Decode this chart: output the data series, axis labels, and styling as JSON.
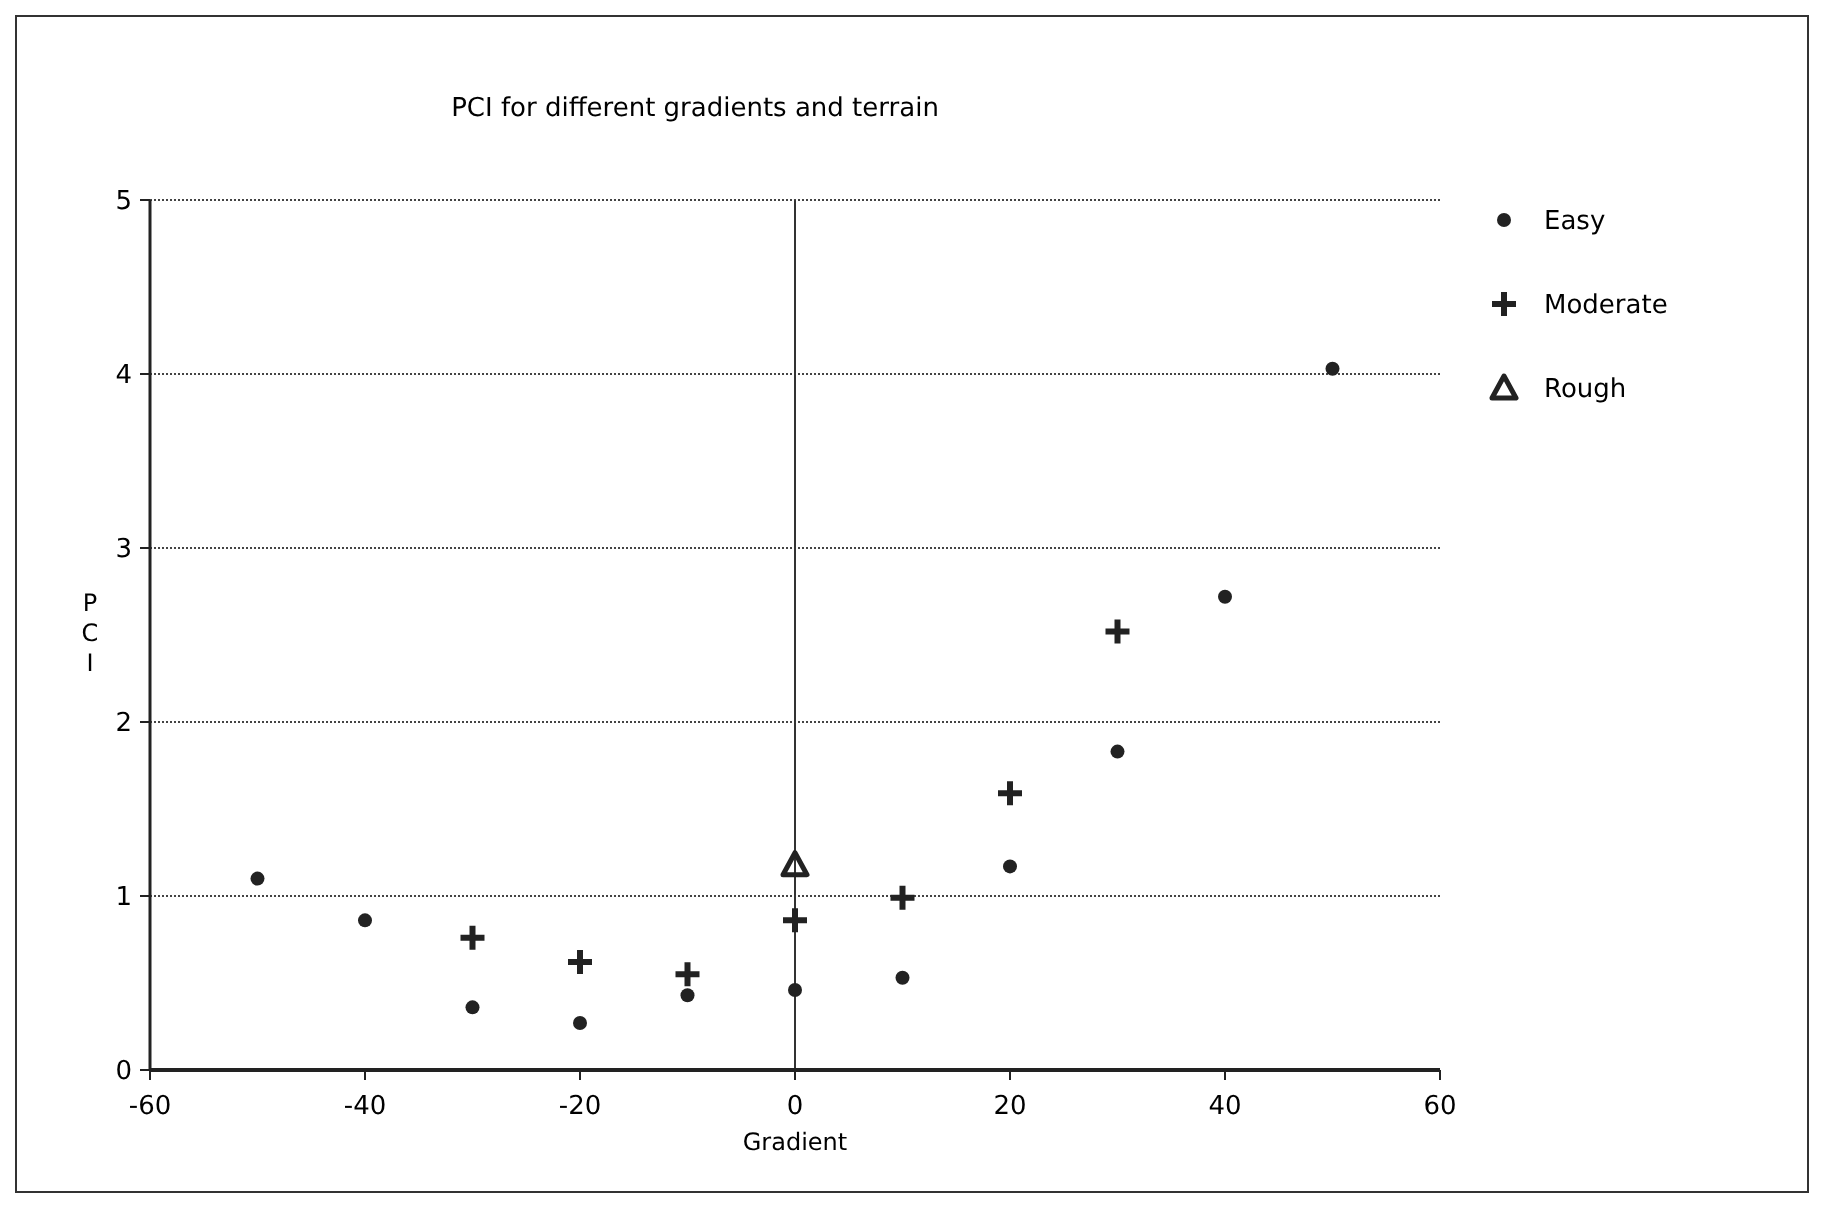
{
  "chart_data": {
    "type": "scatter",
    "title": "PCI for different gradients and terrain",
    "xlabel": "Gradient",
    "ylabel": "PCI",
    "series": [
      {
        "name": "Easy",
        "color": "#222222",
        "marker": "circle",
        "x": [
          -50,
          -40,
          -30,
          -20,
          -10,
          0,
          10,
          20,
          30,
          40,
          50
        ],
        "values": [
          1.1,
          0.86,
          0.36,
          0.27,
          0.43,
          0.46,
          0.53,
          1.17,
          1.83,
          2.72,
          4.03
        ]
      },
      {
        "name": "Moderate",
        "color": "#222222",
        "marker": "cross",
        "x": [
          -30,
          -20,
          -10,
          0,
          10,
          20,
          30
        ],
        "values": [
          0.76,
          0.62,
          0.55,
          0.86,
          0.99,
          1.59,
          2.52
        ]
      },
      {
        "name": "Rough",
        "color": "#222222",
        "marker": "triangle",
        "x": [
          0
        ],
        "values": [
          1.18
        ]
      }
    ],
    "xlim": [
      -60,
      60
    ],
    "xticks": [
      -60,
      -40,
      -20,
      0,
      20,
      40,
      60
    ],
    "ylim": [
      0,
      5
    ],
    "yticks": [
      0,
      1,
      2,
      3,
      4,
      5
    ],
    "grid": "y",
    "legend": "top right",
    "ref_lines": [
      {
        "axis": "x",
        "value": 0,
        "color": "#333333"
      }
    ]
  }
}
